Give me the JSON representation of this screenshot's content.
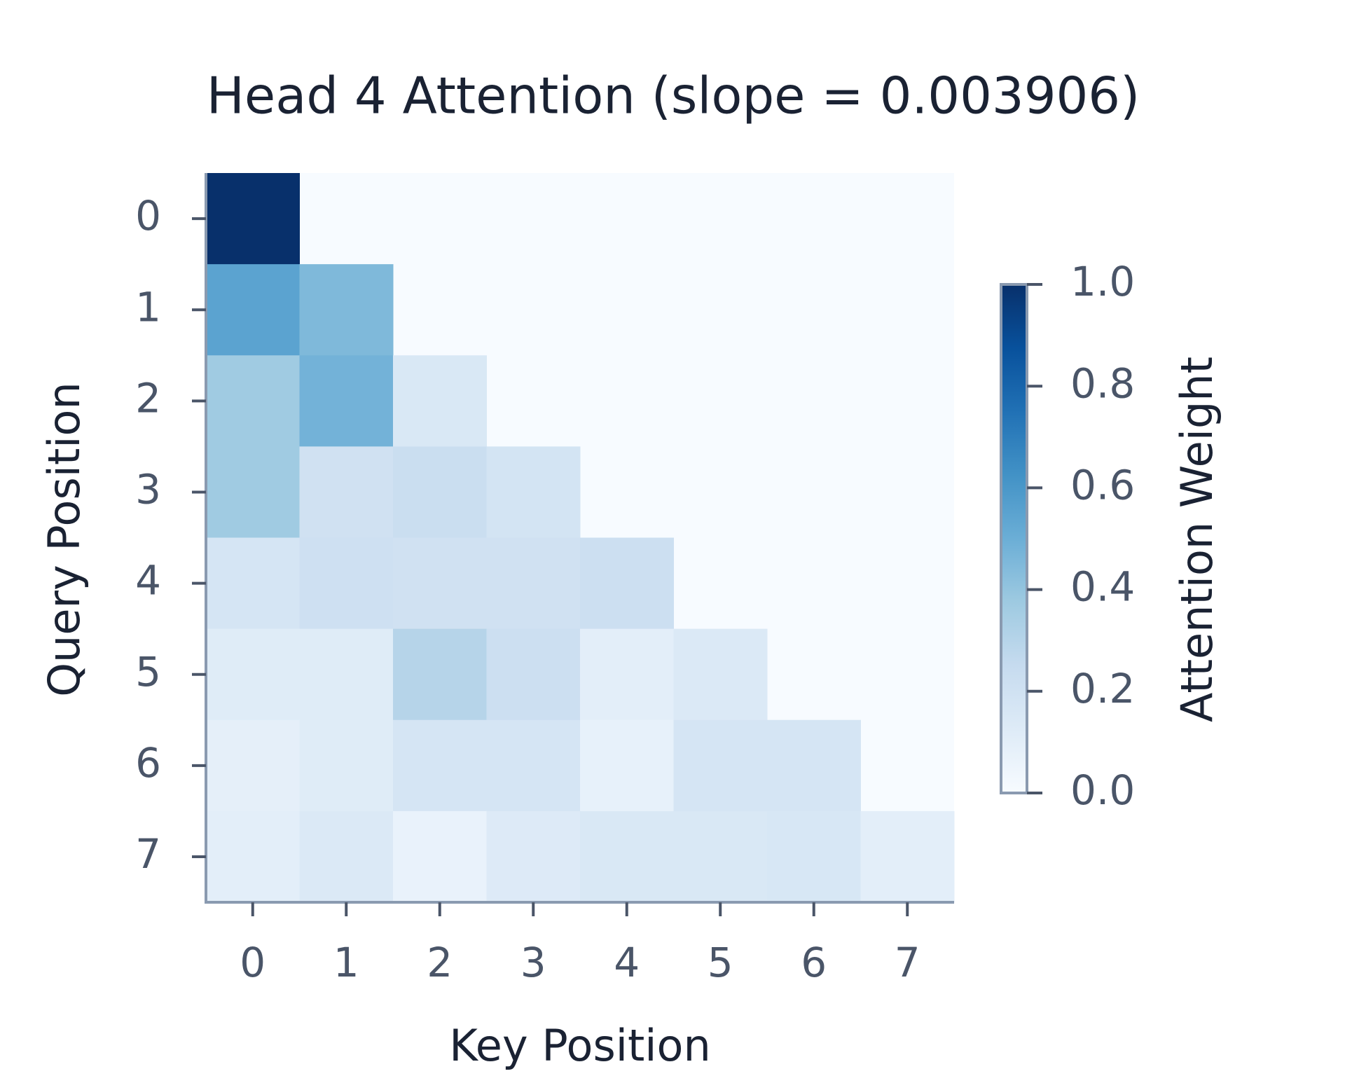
{
  "chart_data": {
    "type": "heatmap",
    "title": "Head 4 Attention (slope = 0.003906)",
    "x_label": "Key Position",
    "y_label": "Query Position",
    "colorbar_label": "Attention Weight",
    "colormap": "Blues",
    "x_categories": [
      "0",
      "1",
      "2",
      "3",
      "4",
      "5",
      "6",
      "7"
    ],
    "y_categories": [
      "0",
      "1",
      "2",
      "3",
      "4",
      "5",
      "6",
      "7"
    ],
    "values": [
      [
        1.0,
        null,
        null,
        null,
        null,
        null,
        null,
        null
      ],
      [
        0.55,
        0.45,
        null,
        null,
        null,
        null,
        null,
        null
      ],
      [
        0.37,
        0.48,
        0.15,
        null,
        null,
        null,
        null,
        null
      ],
      [
        0.37,
        0.2,
        0.23,
        0.18,
        null,
        null,
        null,
        null
      ],
      [
        0.17,
        0.21,
        0.2,
        0.2,
        0.22,
        null,
        null,
        null
      ],
      [
        0.12,
        0.12,
        0.3,
        0.22,
        0.1,
        0.14,
        null,
        null
      ],
      [
        0.09,
        0.12,
        0.17,
        0.17,
        0.08,
        0.17,
        0.17,
        null
      ],
      [
        0.1,
        0.14,
        0.07,
        0.13,
        0.15,
        0.15,
        0.16,
        0.1
      ]
    ],
    "clim": [
      0,
      1
    ],
    "cticks": [
      {
        "value": 0,
        "label": "0.0"
      },
      0.2,
      0.4,
      0.6,
      0.8,
      {
        "value": 1,
        "label": "1.0"
      }
    ]
  }
}
